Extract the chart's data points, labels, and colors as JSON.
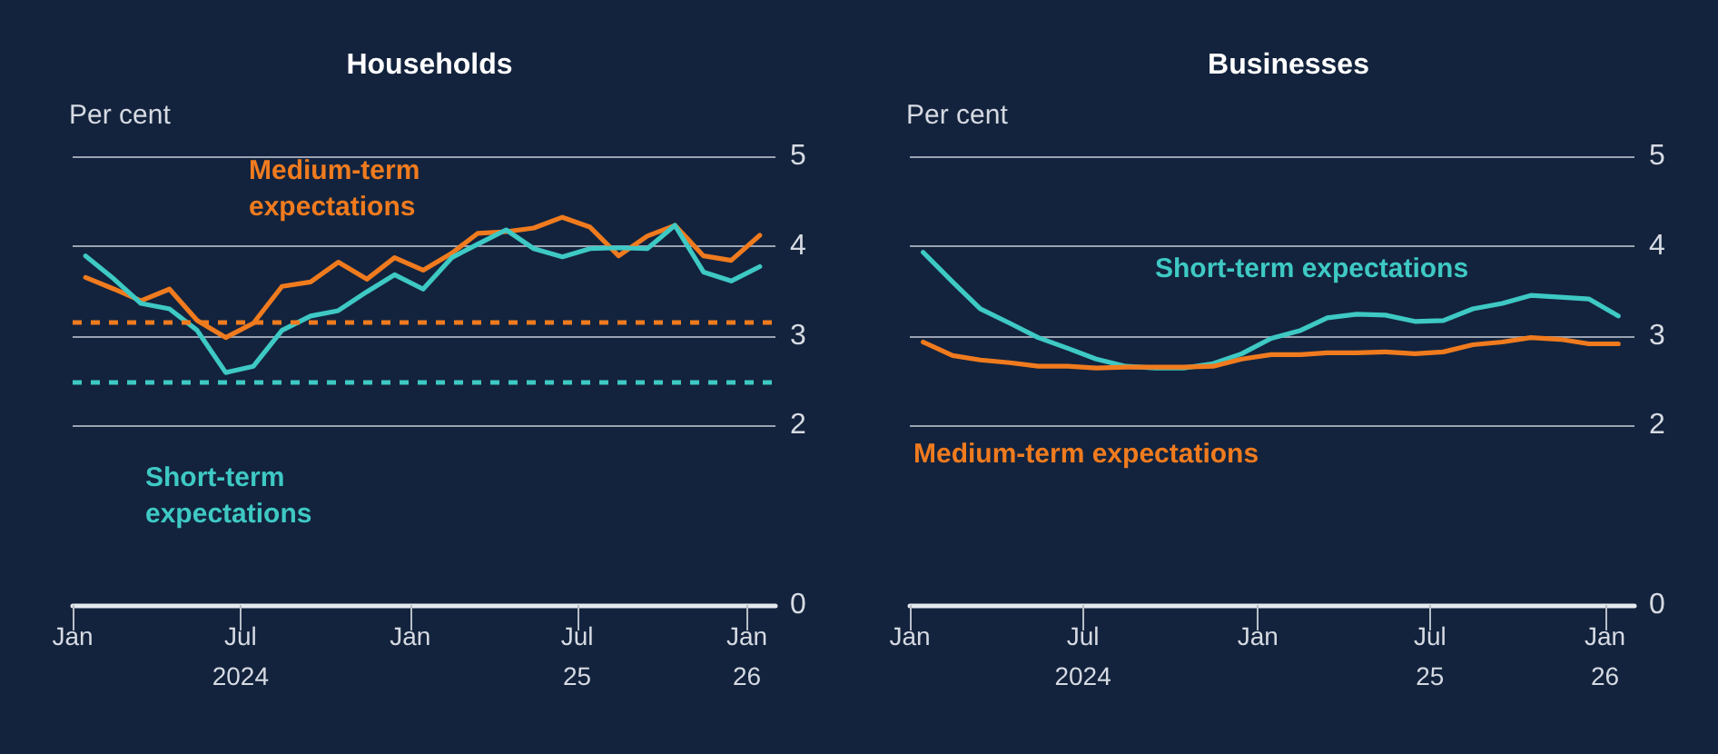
{
  "chart_data": [
    {
      "type": "line",
      "title": "Households",
      "ylabel": "Per cent",
      "x": [
        "2024-01-15",
        "2024-02-15",
        "2024-03-15",
        "2024-04-15",
        "2024-05-15",
        "2024-06-15",
        "2024-07-15",
        "2024-08-15",
        "2024-09-15",
        "2024-10-15",
        "2024-11-15",
        "2024-12-15",
        "2025-01-15",
        "2025-02-15",
        "2025-03-15",
        "2025-04-15",
        "2025-05-15",
        "2025-06-15",
        "2025-07-15",
        "2025-08-15",
        "2025-09-15",
        "2025-10-15",
        "2025-11-15",
        "2025-12-15",
        "2026-01-15"
      ],
      "series": [
        {
          "name": "Medium-term expectations",
          "color": "#f07b1e",
          "values": [
            3.65,
            3.52,
            3.39,
            3.52,
            3.17,
            2.98,
            3.14,
            3.55,
            3.6,
            3.82,
            3.63,
            3.87,
            3.73,
            3.92,
            4.14,
            4.16,
            4.2,
            4.32,
            4.21,
            3.89,
            4.11,
            4.23,
            3.89,
            3.84,
            4.12
          ]
        },
        {
          "name": "Short-term expectations",
          "color": "#3ec9c4",
          "values": [
            3.89,
            3.63,
            3.36,
            3.3,
            3.06,
            2.59,
            2.66,
            3.06,
            3.22,
            3.28,
            3.49,
            3.68,
            3.52,
            3.87,
            4.02,
            4.18,
            3.97,
            3.88,
            3.97,
            3.98,
            3.97,
            4.23,
            3.71,
            3.61,
            3.77
          ]
        }
      ],
      "ref_lines": [
        {
          "axis": "y",
          "value": 3.16,
          "color": "#f07b1e",
          "line_style": "dashed"
        },
        {
          "axis": "y",
          "value": 2.48,
          "color": "#3ec9c4",
          "line_style": "dashed"
        }
      ],
      "xlim": [
        "2024-01-01",
        "2026-02-01"
      ],
      "xticks": [
        {
          "value": "2024-01-01",
          "label": "Jan"
        },
        {
          "value": "2024-07-01",
          "label": "Jul\n2024"
        },
        {
          "value": "2025-01-01",
          "label": "Jan"
        },
        {
          "value": "2025-07-01",
          "label": "Jul\n25"
        },
        {
          "value": "2026-01-01",
          "label": "Jan\n26"
        }
      ],
      "ylim": [
        0,
        5
      ],
      "yticks": [
        0,
        2,
        3,
        4,
        5
      ],
      "grid": "y",
      "marker": "none"
    },
    {
      "type": "line",
      "title": "Businesses",
      "ylabel": "Per cent",
      "x": [
        "2024-01-15",
        "2024-02-15",
        "2024-03-15",
        "2024-04-15",
        "2024-05-15",
        "2024-06-15",
        "2024-07-15",
        "2024-08-15",
        "2024-09-15",
        "2024-10-15",
        "2024-11-15",
        "2024-12-15",
        "2025-01-15",
        "2025-02-15",
        "2025-03-15",
        "2025-04-15",
        "2025-05-15",
        "2025-06-15",
        "2025-07-15",
        "2025-08-15",
        "2025-09-15",
        "2025-10-15",
        "2025-11-15",
        "2025-12-15",
        "2026-01-15"
      ],
      "series": [
        {
          "name": "Short-term expectations",
          "color": "#3ec9c4",
          "values": [
            3.93,
            3.6,
            3.3,
            3.14,
            2.98,
            2.86,
            2.74,
            2.66,
            2.64,
            2.64,
            2.69,
            2.8,
            2.97,
            3.06,
            3.2,
            3.24,
            3.23,
            3.16,
            3.17,
            3.3,
            3.36,
            3.45,
            3.43,
            3.41,
            3.22
          ]
        },
        {
          "name": "Medium-term expectations",
          "color": "#f07b1e",
          "values": [
            2.93,
            2.78,
            2.73,
            2.7,
            2.66,
            2.66,
            2.64,
            2.65,
            2.65,
            2.65,
            2.66,
            2.74,
            2.79,
            2.79,
            2.81,
            2.81,
            2.82,
            2.8,
            2.82,
            2.9,
            2.93,
            2.98,
            2.96,
            2.91,
            2.91
          ]
        }
      ],
      "xlim": [
        "2024-01-01",
        "2026-02-01"
      ],
      "xticks": [
        {
          "value": "2024-01-01",
          "label": "Jan"
        },
        {
          "value": "2024-07-01",
          "label": "Jul\n2024"
        },
        {
          "value": "2025-01-01",
          "label": "Jan"
        },
        {
          "value": "2025-07-01",
          "label": "Jul\n25"
        },
        {
          "value": "2026-01-01",
          "label": "Jan\n26"
        }
      ],
      "ylim": [
        0,
        5
      ],
      "yticks": [
        0,
        2,
        3,
        4,
        5
      ],
      "grid": "y",
      "marker": "none"
    }
  ]
}
